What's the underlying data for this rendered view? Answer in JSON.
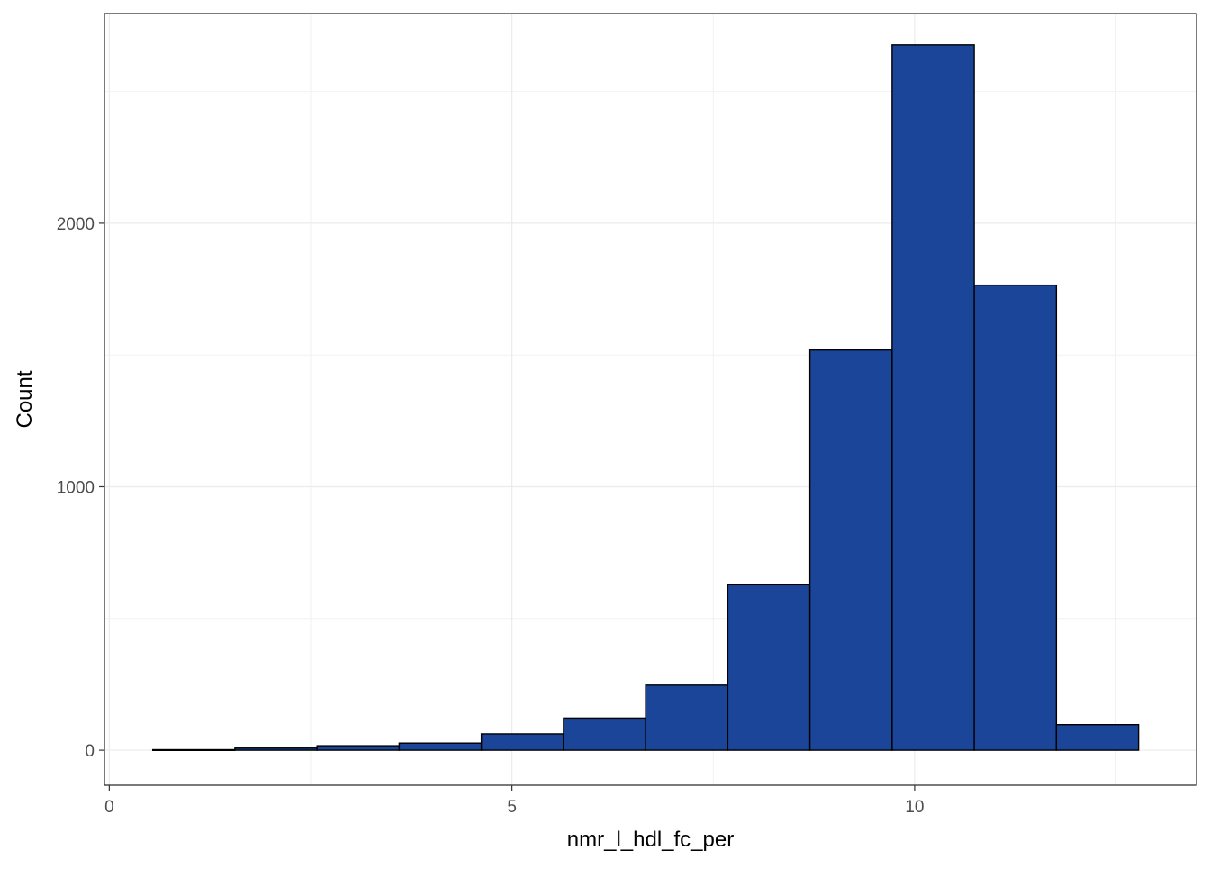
{
  "chart_data": {
    "type": "bar",
    "subtype": "histogram",
    "title": "",
    "xlabel": "nmr_l_hdl_fc_per",
    "ylabel": "Count",
    "xlim": [
      -0.06,
      13.5
    ],
    "ylim": [
      -133,
      2796
    ],
    "xticks": [
      0,
      5,
      10
    ],
    "xtick_labels": [
      "0",
      "5",
      "10"
    ],
    "yticks": [
      0,
      1000,
      2000
    ],
    "ytick_labels": [
      "0",
      "1000",
      "2000"
    ],
    "grid": true,
    "bins": [
      {
        "x0": 0.54,
        "x1": 1.56,
        "count": 2
      },
      {
        "x0": 1.56,
        "x1": 2.58,
        "count": 8
      },
      {
        "x0": 2.58,
        "x1": 3.6,
        "count": 17
      },
      {
        "x0": 3.6,
        "x1": 4.62,
        "count": 27
      },
      {
        "x0": 4.62,
        "x1": 5.64,
        "count": 62
      },
      {
        "x0": 5.64,
        "x1": 6.66,
        "count": 122
      },
      {
        "x0": 6.66,
        "x1": 7.68,
        "count": 247
      },
      {
        "x0": 7.68,
        "x1": 8.7,
        "count": 628
      },
      {
        "x0": 8.7,
        "x1": 9.72,
        "count": 1519
      },
      {
        "x0": 9.72,
        "x1": 10.74,
        "count": 2677
      },
      {
        "x0": 10.74,
        "x1": 11.76,
        "count": 1765
      },
      {
        "x0": 11.76,
        "x1": 12.78,
        "count": 97
      }
    ],
    "colors": {
      "bar_fill": "#1A4599",
      "bar_stroke": "#000000",
      "grid_major": "#EBEBEB",
      "grid_minor": "#F2F2F2",
      "panel_border": "#333333",
      "tick_text": "#4D4D4D",
      "axis_title_text": "#000000"
    }
  }
}
